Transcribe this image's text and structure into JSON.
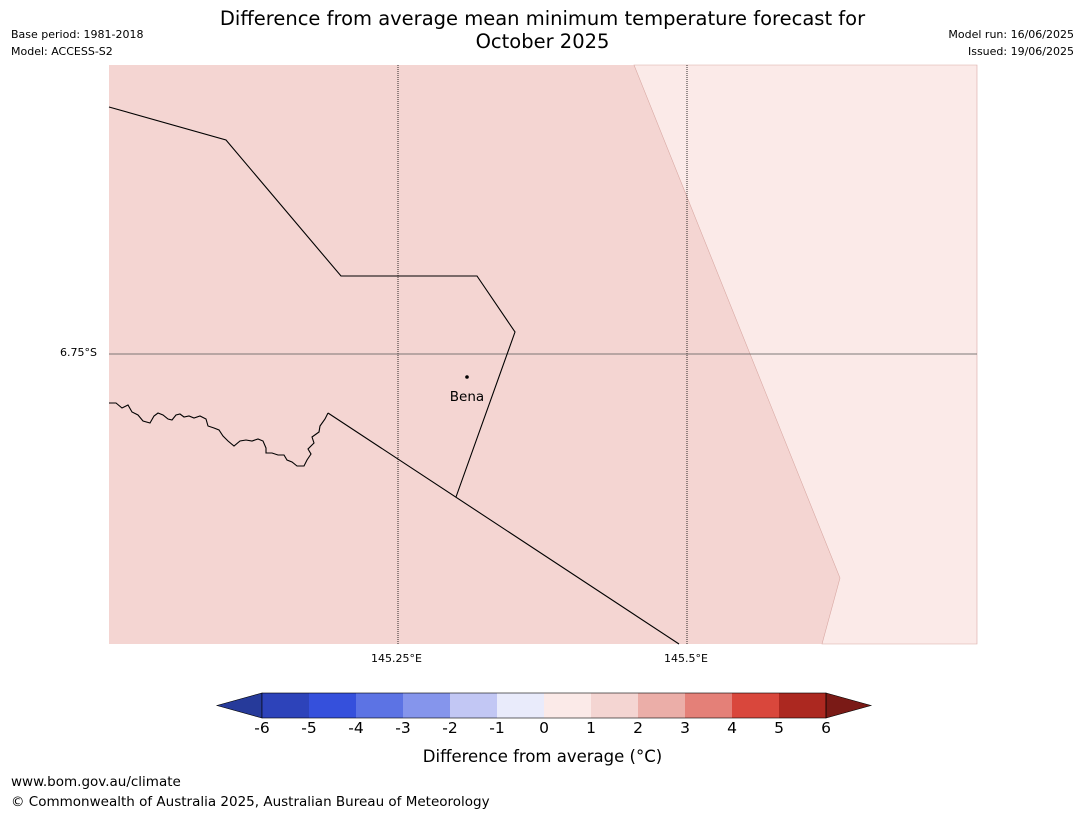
{
  "header": {
    "base_period": "Base period: 1981-2018",
    "model": "Model: ACCESS-S2",
    "title_line1": "Difference from average mean minimum temperature forecast for",
    "title_line2": "October 2025",
    "model_run": "Model run: 16/06/2025",
    "issued": "Issued: 19/06/2025"
  },
  "map": {
    "lat_label": "6.75°S",
    "lon_labels": [
      "145.25°E",
      "145.5°E"
    ],
    "place_name": "Bena",
    "fill_colors": {
      "main": "#f4d5d2",
      "lighter": "#fbeae8"
    },
    "regions": [
      {
        "name": "main",
        "value_range": "1 to 2"
      },
      {
        "name": "lighter",
        "value_range": "0 to 1"
      }
    ]
  },
  "colorbar": {
    "label": "Difference from average (°C)",
    "ticks": [
      "-6",
      "-5",
      "-4",
      "-3",
      "-2",
      "-1",
      "0",
      "1",
      "2",
      "3",
      "4",
      "5",
      "6"
    ],
    "colors": [
      "#263a9a",
      "#2d43ba",
      "#3550dc",
      "#5c73e4",
      "#8595ec",
      "#c2c7f4",
      "#e9ebfb",
      "#fbeae8",
      "#f4d5d2",
      "#ebaea8",
      "#e48078",
      "#d9473c",
      "#ac2820",
      "#7a1a16"
    ]
  },
  "footer": {
    "url": "www.bom.gov.au/climate",
    "copyright": "© Commonwealth of Australia 2025, Australian Bureau of Meteorology"
  }
}
